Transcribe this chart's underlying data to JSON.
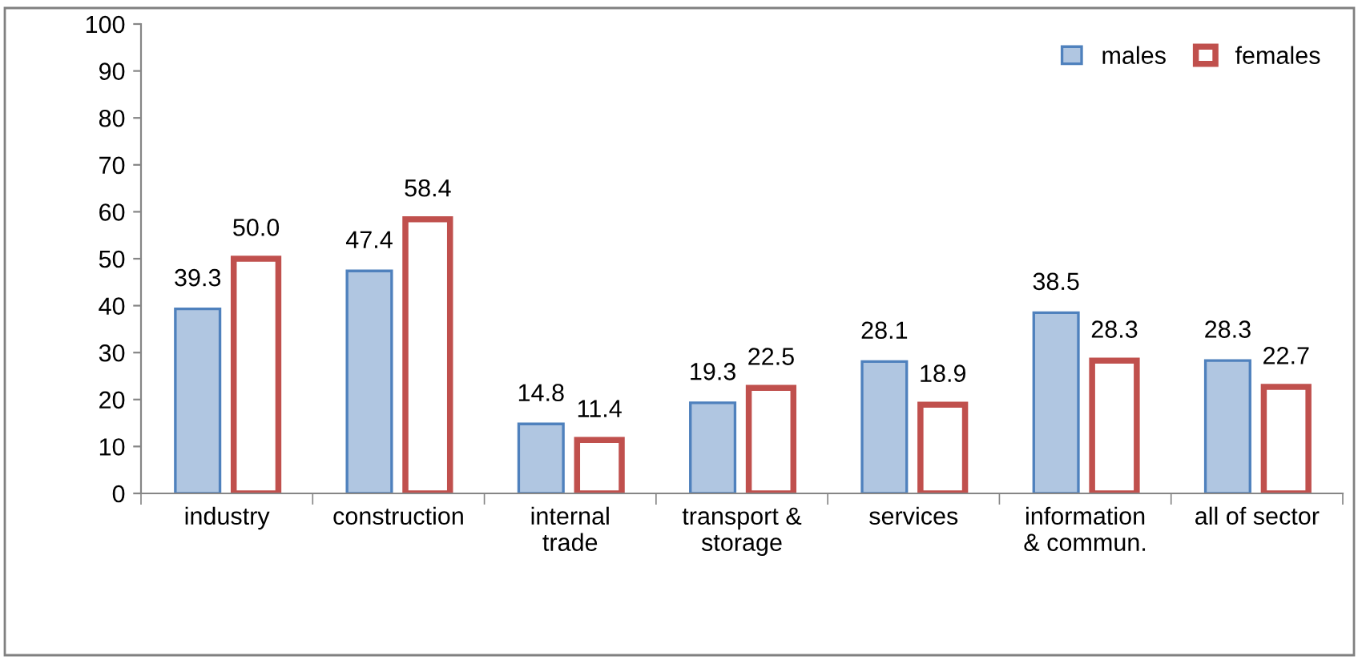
{
  "chart_data": {
    "type": "bar",
    "categories": [
      "industry",
      "construction",
      "internal\ntrade",
      "transport &\nstorage",
      "services",
      "information\n& commun.",
      "all of sector"
    ],
    "series": [
      {
        "name": "males",
        "color": "#4f81bd",
        "values": [
          39.3,
          47.4,
          14.8,
          19.3,
          28.1,
          38.5,
          28.3
        ],
        "value_labels": [
          "39.3",
          "47.4",
          "14.8",
          "19.3",
          "28.1",
          "38.5",
          "28.3"
        ]
      },
      {
        "name": "females",
        "color": "#c0504d",
        "values": [
          50.0,
          58.4,
          11.4,
          22.5,
          18.9,
          28.3,
          22.7
        ],
        "value_labels": [
          "50.0",
          "58.4",
          "11.4",
          "22.5",
          "18.9",
          "28.3",
          "22.7"
        ]
      }
    ],
    "ylim": [
      0,
      100
    ],
    "yticks": [
      0,
      10,
      20,
      30,
      40,
      50,
      60,
      70,
      80,
      90,
      100
    ],
    "legend": "top right",
    "grid": false
  }
}
